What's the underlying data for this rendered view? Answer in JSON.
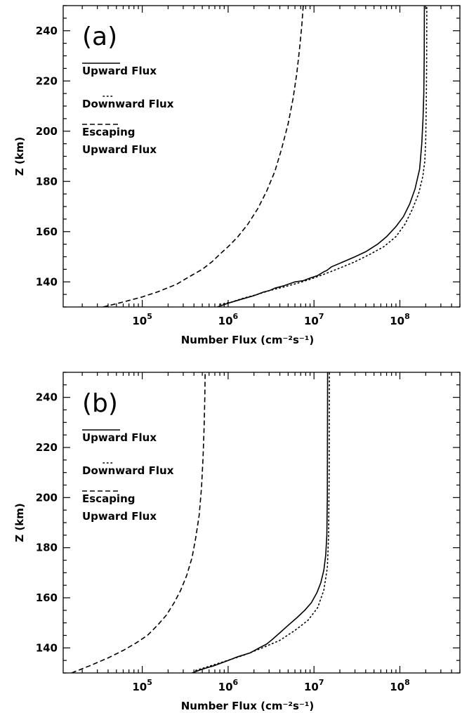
{
  "chart_data": [
    {
      "type": "line",
      "panel_label": "(a)",
      "xlabel": "Number Flux (cm⁻²s⁻¹)",
      "ylabel": "Z (km)",
      "xscale": "log",
      "xlim": [
        12000,
        500000000
      ],
      "ylim": [
        130,
        250
      ],
      "xticks": [
        100000,
        1000000,
        10000000,
        100000000
      ],
      "xtick_labels": [
        {
          "base": "10",
          "exp": "5"
        },
        {
          "base": "10",
          "exp": "6"
        },
        {
          "base": "10",
          "exp": "7"
        },
        {
          "base": "10",
          "exp": "8"
        }
      ],
      "yticks": [
        140,
        160,
        180,
        200,
        220,
        240
      ],
      "legend": [
        {
          "label": "Upward Flux",
          "style": "solid"
        },
        {
          "label": "Downward Flux",
          "style": "dotted"
        },
        {
          "label": "Escaping",
          "label2": "Upward Flux",
          "style": "dashed"
        }
      ],
      "series": [
        {
          "style": "solid",
          "x": [
            750000,
            1000000,
            1400000,
            2000000,
            2600000,
            3000000,
            3500000,
            4500000,
            6000000,
            7500000,
            9000000,
            11000000,
            13000000,
            14000000,
            16000000,
            22000000,
            30000000,
            40000000,
            55000000,
            70000000,
            90000000,
            110000000,
            130000000,
            150000000,
            170000000,
            180000000,
            186000000,
            190000000,
            192000000,
            193000000
          ],
          "y": [
            130,
            131.5,
            133,
            134.5,
            136,
            136.5,
            137.5,
            138.5,
            140,
            140.5,
            141.5,
            142.5,
            144,
            144.5,
            146,
            148,
            150,
            152,
            155,
            158,
            162,
            166,
            171,
            177,
            185,
            195,
            205,
            215,
            230,
            250
          ]
        },
        {
          "style": "dotted",
          "x": [
            800000,
            1100000,
            1500000,
            2200000,
            3000000,
            4500000,
            6500000,
            9000000,
            13000000,
            20000000,
            30000000,
            45000000,
            65000000,
            90000000,
            115000000,
            140000000,
            165000000,
            185000000,
            195000000,
            200000000,
            203000000,
            205000000,
            206000000
          ],
          "y": [
            131,
            132,
            133.5,
            135,
            136.5,
            138,
            139.5,
            141,
            143,
            145.5,
            148,
            151,
            154,
            158,
            163,
            169,
            175,
            182,
            188,
            196,
            210,
            225,
            250
          ]
        },
        {
          "style": "dashed",
          "x": [
            35000,
            60000,
            100000,
            150000,
            250000,
            350000,
            500000,
            650000,
            800000,
            1000000,
            1300000,
            1700000,
            2200000,
            2800000,
            3500000,
            4200000,
            5000000,
            5700000,
            6300000,
            6800000,
            7200000,
            7500000
          ],
          "y": [
            130,
            132,
            134,
            136,
            139,
            142,
            145,
            148,
            151,
            154,
            158,
            163,
            169,
            176,
            184,
            193,
            203,
            213,
            223,
            233,
            242,
            250
          ]
        }
      ]
    },
    {
      "type": "line",
      "panel_label": "(b)",
      "xlabel": "Number Flux (cm⁻²s⁻¹)",
      "ylabel": "Z (km)",
      "xscale": "log",
      "xlim": [
        12000,
        500000000
      ],
      "ylim": [
        130,
        250
      ],
      "xticks": [
        100000,
        1000000,
        10000000,
        100000000
      ],
      "xtick_labels": [
        {
          "base": "10",
          "exp": "5"
        },
        {
          "base": "10",
          "exp": "6"
        },
        {
          "base": "10",
          "exp": "7"
        },
        {
          "base": "10",
          "exp": "8"
        }
      ],
      "yticks": [
        140,
        160,
        180,
        200,
        220,
        240
      ],
      "legend": [
        {
          "label": "Upward Flux",
          "style": "solid"
        },
        {
          "label": "Downward Flux",
          "style": "dotted"
        },
        {
          "label": "Escaping",
          "label2": "Upward Flux",
          "style": "dashed"
        }
      ],
      "series": [
        {
          "style": "solid",
          "x": [
            380000,
            500000,
            700000,
            1000000,
            1300000,
            1800000,
            2300000,
            2800000,
            3300000,
            4000000,
            5000000,
            6300000,
            7800000,
            9300000,
            10800000,
            12000000,
            13000000,
            13700000,
            14100000,
            14300000,
            14400000
          ],
          "y": [
            130,
            131.5,
            133,
            135,
            136.5,
            138,
            140,
            141.5,
            143.5,
            146,
            149,
            152,
            155,
            158,
            162,
            166,
            171,
            177,
            185,
            200,
            250
          ]
        },
        {
          "style": "dotted",
          "x": [
            420000,
            800000,
            1500000,
            2500000,
            4000000,
            6000000,
            8500000,
            11000000,
            13000000,
            14300000,
            14800000,
            15000000,
            15100000
          ],
          "y": [
            131,
            134,
            137,
            140,
            143,
            147,
            151,
            156,
            163,
            172,
            185,
            210,
            250
          ]
        },
        {
          "style": "dashed",
          "x": [
            15000,
            25000,
            40000,
            60000,
            85000,
            115000,
            150000,
            190000,
            235000,
            280000,
            330000,
            380000,
            420000,
            460000,
            490000,
            510000,
            525000,
            535000,
            540000
          ],
          "y": [
            130,
            133,
            136,
            139,
            142,
            145,
            149,
            153,
            158,
            163,
            169,
            176,
            184,
            193,
            204,
            216,
            228,
            240,
            250
          ]
        }
      ]
    }
  ]
}
